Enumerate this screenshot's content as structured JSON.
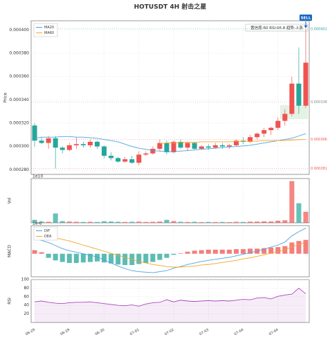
{
  "chart_data": {
    "type": "candlestick",
    "title": "HOTUSDT  4H  射击之星",
    "categories": [
      "06-29",
      null,
      null,
      null,
      null,
      "06-29",
      null,
      null,
      null,
      null,
      "06-30",
      null,
      null,
      null,
      null,
      "07-01",
      null,
      null,
      null,
      null,
      "07-02",
      null,
      null,
      null,
      null,
      "07-03",
      null,
      null,
      null,
      null,
      "07-04",
      null,
      null,
      null,
      null,
      "07-04",
      null,
      null,
      null,
      null
    ],
    "up_color": "#ef5350",
    "down_color": "#26a69a",
    "open": [
      0.000318,
      0.000305,
      0.000303,
      0.000307,
      0.000299,
      0.000297,
      0.000301,
      0.000302,
      0.000301,
      0.000304,
      0.0003,
      0.000292,
      0.00029,
      0.000287,
      0.000289,
      0.000286,
      0.000293,
      0.000294,
      0.000298,
      0.000303,
      0.000295,
      0.000304,
      0.000299,
      0.000303,
      0.000298,
      0.0003,
      0.000299,
      0.000301,
      0.0003,
      0.000301,
      0.000305,
      0.000304,
      0.000308,
      0.000311,
      0.000314,
      0.000316,
      0.000322,
      0.000328,
      0.000354,
      0.000335
    ],
    "high": [
      0.00032,
      0.000308,
      0.000309,
      0.000309,
      0.0003,
      0.000303,
      0.000308,
      0.000304,
      0.000306,
      0.000305,
      0.000301,
      0.000295,
      0.000291,
      0.000291,
      0.000292,
      0.000296,
      0.000296,
      0.0003,
      0.000306,
      0.000305,
      0.000305,
      0.000306,
      0.000304,
      0.000304,
      0.000301,
      0.000302,
      0.000303,
      0.000303,
      0.000302,
      0.000306,
      0.000308,
      0.00031,
      0.000312,
      0.000316,
      0.000317,
      0.000325,
      0.000332,
      0.00036,
      0.000385,
      0.000401
    ],
    "low": [
      0.0003,
      0.000302,
      0.000298,
      0.000281,
      0.000294,
      0.000296,
      0.000298,
      0.000299,
      0.000299,
      0.000298,
      0.00029,
      0.000288,
      0.000286,
      0.000286,
      0.000285,
      0.000284,
      0.000292,
      0.000293,
      0.000296,
      0.000293,
      0.000294,
      0.000298,
      0.000296,
      0.000297,
      0.000297,
      0.000297,
      0.000298,
      0.000298,
      0.000298,
      0.0003,
      0.000302,
      0.000303,
      0.000306,
      0.000308,
      0.00031,
      0.000314,
      0.000318,
      0.000326,
      0.000328,
      0.000333
    ],
    "close": [
      0.000305,
      0.000303,
      0.000307,
      0.000299,
      0.000297,
      0.000301,
      0.000302,
      0.000301,
      0.000304,
      0.0003,
      0.000292,
      0.00029,
      0.000287,
      0.000289,
      0.000286,
      0.000293,
      0.000294,
      0.000298,
      0.000303,
      0.000295,
      0.000304,
      0.000299,
      0.000303,
      0.000298,
      0.0003,
      0.000299,
      0.000301,
      0.0003,
      0.000301,
      0.000305,
      0.000304,
      0.000308,
      0.000311,
      0.000314,
      0.000316,
      0.000322,
      0.000328,
      0.000354,
      0.000335,
      0.000372
    ],
    "series": [
      {
        "name": "MA20",
        "color": "#4aa3df",
        "values": [
          0.000307,
          0.000308,
          0.000308,
          0.000308,
          0.0003085,
          0.0003085,
          0.000308,
          0.000308,
          0.0003075,
          0.000307,
          0.000306,
          0.000305,
          0.000304,
          0.000302,
          0.0003,
          0.0002985,
          0.0002975,
          0.0002965,
          0.000296,
          0.0002955,
          0.0002955,
          0.000296,
          0.0002965,
          0.000297,
          0.0002975,
          0.000298,
          0.0002985,
          0.000299,
          0.0002995,
          0.0003,
          0.0003005,
          0.000301,
          0.000302,
          0.000303,
          0.000304,
          0.000305,
          0.000306,
          0.000307,
          0.000309,
          0.000311
        ]
      },
      {
        "name": "MA60",
        "color": "#f5a623",
        "values": [
          null,
          null,
          null,
          null,
          null,
          null,
          null,
          null,
          null,
          null,
          null,
          null,
          null,
          null,
          null,
          null,
          null,
          null,
          0.0003025,
          0.000303,
          0.000303,
          0.0003035,
          0.0003035,
          0.0003035,
          0.000304,
          0.000304,
          0.000304,
          0.000304,
          0.000304,
          0.0003045,
          0.0003045,
          0.0003045,
          0.0003045,
          0.000305,
          0.000305,
          0.000305,
          0.0003052,
          0.0003055,
          0.0003058,
          0.000306
        ]
      }
    ],
    "ylabel": "Price",
    "ylim": [
      0.000276,
      0.000408
    ],
    "yticks": [
      {
        "value": 0.00028,
        "label": "0.000280"
      },
      {
        "value": 0.0003,
        "label": "0.000300"
      },
      {
        "value": 0.00032,
        "label": "0.000320"
      },
      {
        "value": 0.00034,
        "label": "0.000340"
      },
      {
        "value": 0.00036,
        "label": "0.000360"
      },
      {
        "value": 0.00038,
        "label": "0.000380"
      },
      {
        "value": 0.0004,
        "label": "0.000400"
      }
    ],
    "grid": true,
    "price_levels": [
      {
        "value": 0.000401,
        "label": "0.000401",
        "color": "#26a69a"
      },
      {
        "value": 0.000338,
        "label": "0.000338",
        "color": "#888888"
      },
      {
        "value": 0.000306,
        "label": "0.000306",
        "color": "#ef5350"
      },
      {
        "value": 0.000281,
        "label": "0.000281",
        "color": "#ef5350"
      }
    ],
    "signal": "SELL",
    "info": "置信度:60  RSI:66.8  趋势:上涨",
    "volume": {
      "ylabel": "Vol",
      "offset": "1e10",
      "ylim": [
        0,
        5.2
      ],
      "values": [
        0.35,
        0.15,
        0.12,
        1.1,
        0.2,
        0.15,
        0.12,
        0.1,
        0.12,
        0.1,
        0.18,
        0.15,
        0.12,
        0.1,
        0.12,
        0.14,
        0.1,
        0.12,
        0.15,
        0.35,
        0.2,
        0.12,
        0.1,
        0.12,
        0.08,
        0.1,
        0.09,
        0.1,
        0.08,
        0.12,
        0.1,
        0.14,
        0.15,
        0.18,
        0.16,
        0.25,
        0.3,
        4.9,
        2.3,
        1.3
      ]
    },
    "macd": {
      "ylabel": "MACD",
      "offset": "1e-6",
      "ylim": [
        -4.5,
        5.5
      ],
      "series": [
        {
          "name": "DIF",
          "color": "#4aa3df",
          "values": [
            3.0,
            2.6,
            2.2,
            1.6,
            1.0,
            0.6,
            0.3,
            0.0,
            -0.3,
            -0.6,
            -1.2,
            -1.8,
            -2.4,
            -2.9,
            -3.3,
            -3.5,
            -3.6,
            -3.7,
            -3.5,
            -3.3,
            -2.8,
            -2.5,
            -2.1,
            -1.8,
            -1.5,
            -1.3,
            -1.1,
            -0.9,
            -0.7,
            -0.4,
            -0.1,
            0.2,
            0.5,
            0.9,
            1.3,
            1.7,
            2.3,
            3.5,
            4.3,
            5.0
          ]
        },
        {
          "name": "DEA",
          "color": "#f5a623",
          "values": [
            4.0,
            3.7,
            3.4,
            3.1,
            2.8,
            2.5,
            2.1,
            1.7,
            1.3,
            0.9,
            0.5,
            0.1,
            -0.3,
            -0.7,
            -1.1,
            -1.5,
            -1.8,
            -2.1,
            -2.3,
            -2.5,
            -2.6,
            -2.6,
            -2.5,
            -2.4,
            -2.2,
            -2.1,
            -1.9,
            -1.7,
            -1.5,
            -1.3,
            -1.0,
            -0.8,
            -0.5,
            -0.2,
            0.1,
            0.4,
            0.8,
            1.3,
            1.8,
            2.3
          ]
        }
      ],
      "hist": [
        0.7,
        0.3,
        -0.8,
        -1.3,
        -1.6,
        -1.8,
        -1.8,
        -1.7,
        -1.6,
        -1.5,
        -1.7,
        -1.9,
        -2.1,
        -2.2,
        -2.2,
        -2.0,
        -1.8,
        -1.6,
        -1.2,
        -0.8,
        -0.2,
        0.1,
        0.4,
        0.6,
        0.7,
        0.8,
        0.8,
        0.8,
        0.8,
        0.9,
        0.9,
        1.0,
        1.0,
        1.1,
        1.2,
        1.3,
        1.5,
        2.2,
        2.5,
        2.7
      ]
    },
    "rsi": {
      "ylabel": "RSI",
      "color": "#ab47bc",
      "ylim": [
        0,
        100
      ],
      "yticks": [
        20,
        40,
        60,
        80,
        100
      ],
      "values": [
        48,
        50,
        47,
        45,
        44,
        46,
        47,
        47,
        48,
        46,
        44,
        42,
        40,
        39,
        41,
        38,
        43,
        46,
        47,
        53,
        48,
        52,
        50,
        49,
        50,
        51,
        50,
        51,
        50,
        52,
        54,
        53,
        57,
        58,
        55,
        61,
        64,
        66,
        80,
        66.8
      ]
    }
  }
}
